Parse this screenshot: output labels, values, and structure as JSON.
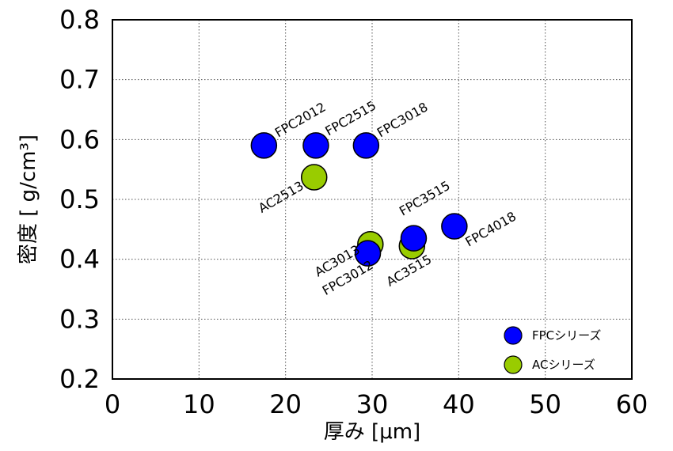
{
  "chart_data": {
    "type": "scatter",
    "xlabel": "厚み [μm]",
    "ylabel": "密度 [ g/cm³]",
    "xlim": [
      0,
      60
    ],
    "ylim": [
      0.2,
      0.8
    ],
    "x_ticks": [
      "0",
      "10",
      "20",
      "30",
      "40",
      "50",
      "60"
    ],
    "y_ticks": [
      "0.2",
      "0.3",
      "0.4",
      "0.5",
      "0.6",
      "0.7",
      "0.8"
    ],
    "grid": true,
    "legend_position": "bottom-right",
    "series": [
      {
        "name": "FPCシリーズ",
        "color": "#0000ff",
        "points": [
          {
            "label": "FPC2012",
            "x": 17.5,
            "y": 0.59
          },
          {
            "label": "FPC2515",
            "x": 23.5,
            "y": 0.59
          },
          {
            "label": "FPC3018",
            "x": 29.3,
            "y": 0.59
          },
          {
            "label": "FPC3515",
            "x": 34.8,
            "y": 0.435
          },
          {
            "label": "FPC4018",
            "x": 39.5,
            "y": 0.455
          },
          {
            "label": "FPC3012",
            "x": 29.5,
            "y": 0.41
          }
        ]
      },
      {
        "name": "ACシリーズ",
        "color": "#99cc00",
        "points": [
          {
            "label": "AC2513",
            "x": 23.3,
            "y": 0.537
          },
          {
            "label": "AC3013",
            "x": 29.8,
            "y": 0.425
          },
          {
            "label": "AC3515",
            "x": 34.6,
            "y": 0.422
          }
        ]
      }
    ]
  }
}
